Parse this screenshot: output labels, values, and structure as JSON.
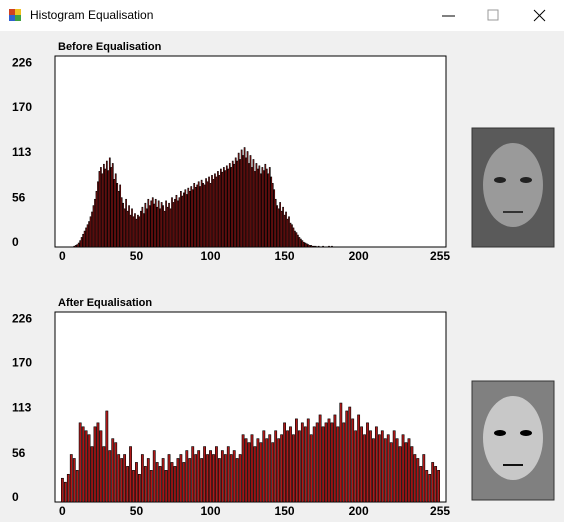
{
  "window": {
    "title": "Histogram Equalisation"
  },
  "chart_data": [
    {
      "type": "bar",
      "title": "Before Equalisation",
      "color": "#b01818",
      "xlim": [
        -5,
        259
      ],
      "ylim": [
        0,
        240
      ],
      "xticks": [
        0,
        50,
        100,
        150,
        200,
        255
      ],
      "yticks": [
        0,
        56,
        113,
        170,
        226
      ],
      "x": [
        8,
        9,
        10,
        11,
        12,
        13,
        14,
        15,
        16,
        17,
        18,
        19,
        20,
        21,
        22,
        23,
        24,
        25,
        26,
        27,
        28,
        29,
        30,
        31,
        32,
        33,
        34,
        35,
        36,
        37,
        38,
        39,
        40,
        41,
        42,
        43,
        44,
        45,
        46,
        47,
        48,
        49,
        50,
        51,
        52,
        53,
        54,
        55,
        56,
        57,
        58,
        59,
        60,
        61,
        62,
        63,
        64,
        65,
        66,
        67,
        68,
        69,
        70,
        71,
        72,
        73,
        74,
        75,
        76,
        77,
        78,
        79,
        80,
        81,
        82,
        83,
        84,
        85,
        86,
        87,
        88,
        89,
        90,
        91,
        92,
        93,
        94,
        95,
        96,
        97,
        98,
        99,
        100,
        101,
        102,
        103,
        104,
        105,
        106,
        107,
        108,
        109,
        110,
        111,
        112,
        113,
        114,
        115,
        116,
        117,
        118,
        119,
        120,
        121,
        122,
        123,
        124,
        125,
        126,
        127,
        128,
        129,
        130,
        131,
        132,
        133,
        134,
        135,
        136,
        137,
        138,
        139,
        140,
        141,
        142,
        143,
        144,
        145,
        146,
        147,
        148,
        149,
        150,
        151,
        152,
        153,
        154,
        155,
        156,
        157,
        158,
        159,
        160,
        161,
        162,
        163,
        164,
        165,
        166,
        167,
        168,
        169,
        170,
        171,
        172,
        173,
        174,
        175,
        176,
        177,
        178,
        179,
        180,
        181,
        182
      ],
      "values": [
        1,
        2,
        3,
        5,
        8,
        12,
        16,
        20,
        24,
        28,
        32,
        38,
        44,
        52,
        60,
        70,
        82,
        95,
        100,
        92,
        104,
        98,
        108,
        96,
        112,
        100,
        105,
        85,
        92,
        80,
        70,
        78,
        62,
        55,
        48,
        60,
        45,
        52,
        40,
        48,
        38,
        42,
        35,
        40,
        38,
        45,
        50,
        42,
        55,
        48,
        60,
        52,
        58,
        62,
        54,
        60,
        50,
        58,
        48,
        56,
        52,
        45,
        58,
        50,
        55,
        48,
        62,
        56,
        60,
        65,
        58,
        62,
        70,
        64,
        68,
        72,
        66,
        74,
        70,
        76,
        72,
        80,
        75,
        78,
        82,
        76,
        84,
        80,
        78,
        86,
        82,
        88,
        80,
        90,
        85,
        92,
        88,
        95,
        90,
        98,
        94,
        100,
        96,
        102,
        98,
        105,
        100,
        108,
        104,
        112,
        108,
        118,
        110,
        122,
        115,
        125,
        112,
        120,
        105,
        115,
        100,
        110,
        95,
        105,
        98,
        102,
        92,
        100,
        96,
        104,
        98,
        92,
        100,
        88,
        80,
        72,
        60,
        52,
        48,
        56,
        45,
        50,
        40,
        44,
        35,
        38,
        30,
        28,
        24,
        20,
        18,
        15,
        12,
        10,
        8,
        6,
        5,
        4,
        3,
        2,
        2,
        1,
        1,
        1,
        0,
        1,
        0,
        0,
        1,
        0,
        0,
        0,
        1,
        0,
        1
      ]
    },
    {
      "type": "bar",
      "title": "After Equalisation",
      "color": "#b01818",
      "xlim": [
        -5,
        259
      ],
      "ylim": [
        0,
        240
      ],
      "xticks": [
        0,
        50,
        100,
        150,
        200,
        255
      ],
      "yticks": [
        0,
        56,
        113,
        170,
        226
      ],
      "x": [
        0,
        2,
        4,
        6,
        8,
        10,
        12,
        14,
        16,
        18,
        20,
        22,
        24,
        26,
        28,
        30,
        32,
        34,
        36,
        38,
        40,
        42,
        44,
        46,
        48,
        50,
        52,
        54,
        56,
        58,
        60,
        62,
        64,
        66,
        68,
        70,
        72,
        74,
        76,
        78,
        80,
        82,
        84,
        86,
        88,
        90,
        92,
        94,
        96,
        98,
        100,
        102,
        104,
        106,
        108,
        110,
        112,
        114,
        116,
        118,
        120,
        122,
        124,
        126,
        128,
        130,
        132,
        134,
        136,
        138,
        140,
        142,
        144,
        146,
        148,
        150,
        152,
        154,
        156,
        158,
        160,
        162,
        164,
        166,
        168,
        170,
        172,
        174,
        176,
        178,
        180,
        182,
        184,
        186,
        188,
        190,
        192,
        194,
        196,
        198,
        200,
        202,
        204,
        206,
        208,
        210,
        212,
        214,
        216,
        218,
        220,
        222,
        224,
        226,
        228,
        230,
        232,
        234,
        236,
        238,
        240,
        242,
        244,
        246,
        248,
        250,
        252,
        254
      ],
      "values": [
        30,
        25,
        35,
        60,
        55,
        40,
        100,
        95,
        90,
        85,
        70,
        95,
        100,
        90,
        70,
        115,
        65,
        80,
        75,
        60,
        55,
        60,
        45,
        70,
        40,
        50,
        35,
        60,
        45,
        55,
        40,
        65,
        50,
        45,
        55,
        40,
        60,
        50,
        45,
        55,
        60,
        50,
        65,
        55,
        70,
        60,
        65,
        55,
        70,
        60,
        65,
        60,
        70,
        55,
        65,
        60,
        70,
        60,
        65,
        55,
        60,
        85,
        80,
        75,
        85,
        70,
        80,
        75,
        90,
        80,
        85,
        75,
        90,
        80,
        85,
        100,
        90,
        95,
        85,
        105,
        90,
        100,
        95,
        105,
        85,
        95,
        100,
        110,
        95,
        100,
        105,
        100,
        110,
        95,
        125,
        100,
        115,
        120,
        105,
        90,
        110,
        95,
        85,
        100,
        90,
        80,
        95,
        85,
        90,
        80,
        85,
        75,
        90,
        80,
        70,
        85,
        75,
        80,
        70,
        60,
        55,
        45,
        60,
        40,
        35,
        50,
        45,
        40
      ]
    }
  ]
}
